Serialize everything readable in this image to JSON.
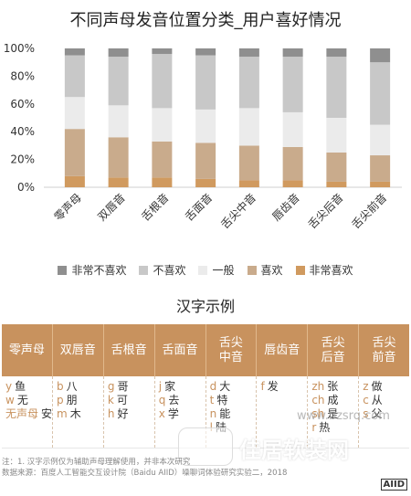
{
  "chart_data": {
    "type": "bar",
    "stacked": true,
    "title": "不同声母发音位置分类_用户喜好情况",
    "categories": [
      "零声母",
      "双唇音",
      "舌根音",
      "舌面音",
      "舌尖中音",
      "唇齿音",
      "舌尖后音",
      "舌尖前音"
    ],
    "series": [
      {
        "name": "非常喜欢",
        "color": "#d09a5f",
        "values": [
          8,
          7,
          7,
          6,
          5,
          5,
          4,
          4
        ]
      },
      {
        "name": "喜欢",
        "color": "#c9ab8c",
        "values": [
          34,
          29,
          26,
          26,
          25,
          24,
          21,
          19
        ]
      },
      {
        "name": "一般",
        "color": "#ebebeb",
        "values": [
          23,
          23,
          24,
          24,
          27,
          25,
          25,
          22
        ]
      },
      {
        "name": "不喜欢",
        "color": "#c8c8c8",
        "values": [
          30,
          35,
          39,
          39,
          37,
          40,
          44,
          45
        ]
      },
      {
        "name": "非常不喜欢",
        "color": "#8f8f8f",
        "values": [
          5,
          6,
          4,
          5,
          6,
          6,
          6,
          10
        ]
      }
    ],
    "legend_order": [
      "非常不喜欢",
      "不喜欢",
      "一般",
      "喜欢",
      "非常喜欢"
    ],
    "ylim": [
      0,
      100
    ],
    "yticks": [
      "0%",
      "20%",
      "40%",
      "60%",
      "80%",
      "100%"
    ],
    "grid": false,
    "legend_position": "bottom"
  },
  "examples": {
    "title": "汉字示例",
    "columns": [
      {
        "header": "零声母",
        "items": [
          {
            "l": "y",
            "c": "鱼"
          },
          {
            "l": "w",
            "c": "无"
          },
          {
            "l": "无声母",
            "c": "安"
          }
        ]
      },
      {
        "header": "双唇音",
        "items": [
          {
            "l": "b",
            "c": "八"
          },
          {
            "l": "p",
            "c": "朋"
          },
          {
            "l": "m",
            "c": "木"
          }
        ]
      },
      {
        "header": "舌根音",
        "items": [
          {
            "l": "g",
            "c": "哥"
          },
          {
            "l": "k",
            "c": "可"
          },
          {
            "l": "h",
            "c": "好"
          }
        ]
      },
      {
        "header": "舌面音",
        "items": [
          {
            "l": "j",
            "c": "家"
          },
          {
            "l": "q",
            "c": "去"
          },
          {
            "l": "x",
            "c": "学"
          }
        ]
      },
      {
        "header": "舌尖\n中音",
        "items": [
          {
            "l": "d",
            "c": "大"
          },
          {
            "l": "t",
            "c": "特"
          },
          {
            "l": "n",
            "c": "能"
          },
          {
            "l": "l",
            "c": "陆"
          }
        ]
      },
      {
        "header": "唇齿音",
        "items": [
          {
            "l": "f",
            "c": "发"
          }
        ]
      },
      {
        "header": "舌尖\n后音",
        "items": [
          {
            "l": "zh",
            "c": "张"
          },
          {
            "l": "ch",
            "c": "成"
          },
          {
            "l": "sh",
            "c": "是"
          },
          {
            "l": "r",
            "c": "热"
          }
        ]
      },
      {
        "header": "舌尖\n前音",
        "items": [
          {
            "l": "z",
            "c": "做"
          },
          {
            "l": "c",
            "c": "从"
          },
          {
            "l": "s",
            "c": "父"
          }
        ]
      }
    ]
  },
  "notes": {
    "line1": "注：1. 汉字示例仅为辅助声母理解使用，并非本次研究",
    "line2": "数据来源：百度人工智能交互设计院（Baidu AIID）噪聊词体验研究实验二，2018"
  },
  "watermark": {
    "url": "www.bzsrq.com",
    "text": "佳居软装网"
  },
  "logo_text": "AIID"
}
